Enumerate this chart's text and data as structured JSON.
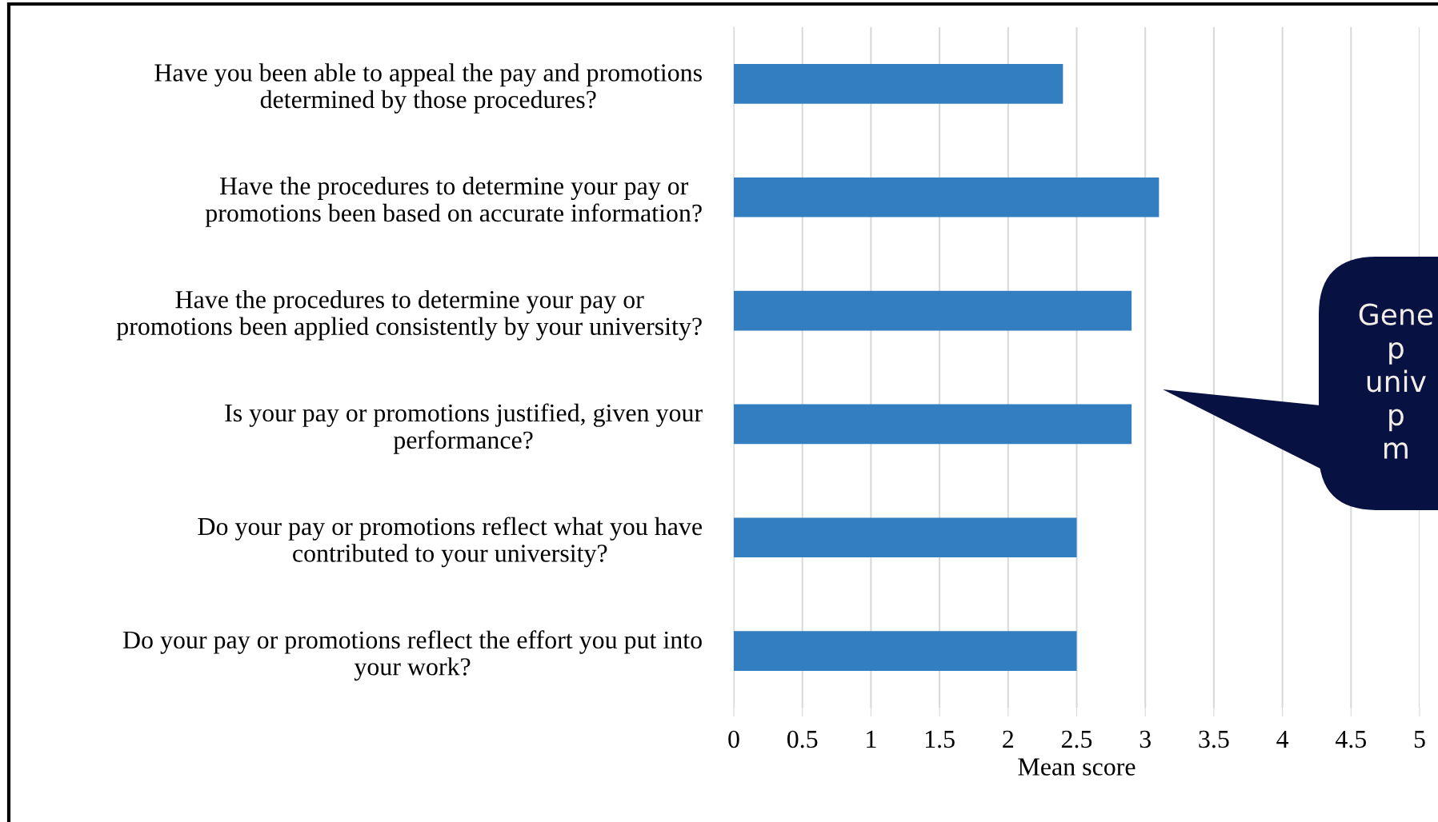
{
  "chart_data": {
    "type": "bar",
    "orientation": "horizontal",
    "categories": [
      "Have you been able to appeal the pay and promotions\ndetermined by those procedures?",
      "Have the procedures to determine your pay or\npromotions been based on accurate information?",
      "Have the procedures to determine your pay or\npromotions been applied consistently by your university?",
      "Is your pay or promotions justified, given your\nperformance?",
      "Do your pay or promotions reflect what you have\ncontributed to your university?",
      "Do your pay or promotions reflect the effort you put into\nyour work?"
    ],
    "values": [
      2.4,
      3.1,
      2.9,
      2.9,
      2.5,
      2.5
    ],
    "color": "#337ec1",
    "xlim": [
      0,
      5
    ],
    "xticks": [
      0,
      0.5,
      1,
      1.5,
      2,
      2.5,
      3,
      3.5,
      4,
      4.5,
      5
    ],
    "xlabel": "Mean score",
    "grid": "x",
    "annotations": [
      "Gene\np\nuniv\np\nm"
    ]
  }
}
